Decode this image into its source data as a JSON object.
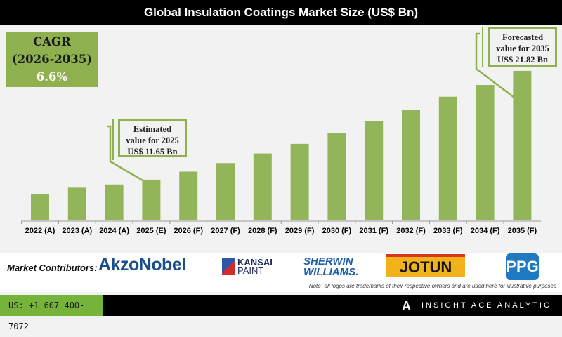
{
  "chart_data": {
    "type": "bar",
    "title": "Global Insulation Coatings Market Size (US$ Bn)",
    "categories": [
      "2022 (A)",
      "2023 (A)",
      "2024 (A)",
      "2025 (E)",
      "2026 (F)",
      "2027 (F)",
      "2028 (F)",
      "2029 (F)",
      "2030 (F)",
      "2031 (F)",
      "2032 (F)",
      "2033 (F)",
      "2034 (F)",
      "2035 (F)"
    ],
    "values": [
      10.3,
      10.9,
      11.2,
      11.65,
      12.4,
      13.2,
      14.1,
      15.0,
      16.0,
      17.1,
      18.2,
      19.4,
      20.5,
      21.82
    ],
    "bar_color": "#92b55a",
    "grid": false,
    "yaxis_visible": false
  },
  "cagr": {
    "label": "CAGR",
    "period": "(2026-2035)",
    "value": "6.6%"
  },
  "callouts": {
    "estimated": [
      "Estimated",
      "value for 2025",
      "US$ 11.65 Bn"
    ],
    "forecast": [
      "Forecasted",
      "value for 2035",
      "US$ 21.82 Bn"
    ]
  },
  "contributors": {
    "label": "Market Contributors:",
    "logos": [
      "AkzoNobel",
      "KANSAI",
      "PAINT",
      "SHERWIN",
      "WILLIAMS.",
      "JOTUN",
      "PPG"
    ],
    "note": "Note- all logos are trademarks of their respective owners and are used here for illustrative purposes"
  },
  "footer": {
    "phone": "US: +1 607 400-7072",
    "brand": "INSIGHT ACE ANALYTIC"
  }
}
